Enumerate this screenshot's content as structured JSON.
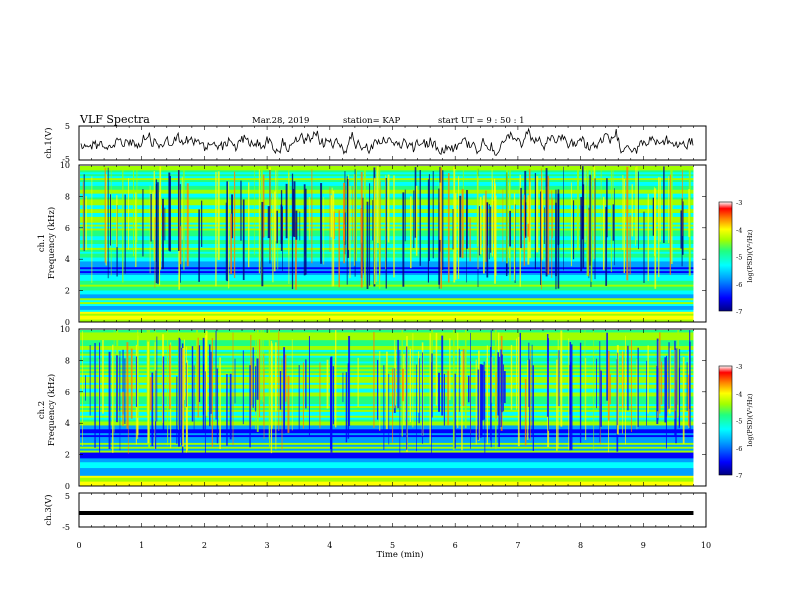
{
  "header": {
    "title": "VLF Spectra",
    "date": "Mar.28, 2019",
    "station": "station= KAP",
    "start": "start  UT =   9 : 50 : 1"
  },
  "chart_data": [
    {
      "type": "line",
      "name": "ch1-waveform",
      "ylabel": "ch.1(V)",
      "ylim": [
        -5,
        5
      ],
      "yticks": [
        "5",
        "-5"
      ],
      "xlim": [
        0,
        10
      ]
    },
    {
      "type": "heatmap",
      "name": "ch1-spectrogram",
      "ylabel": "ch.1\nFrequency  (kHz)",
      "ylabel_line1": "ch.1",
      "ylabel_line2": "Frequency  (kHz)",
      "ylim": [
        0,
        10
      ],
      "yticks": [
        "0",
        "2",
        "4",
        "6",
        "8",
        "10"
      ],
      "xlim": [
        0,
        10
      ],
      "colorbar": {
        "min": -7,
        "max": -3,
        "ticks": [
          "-3",
          "-4",
          "-5",
          "-6",
          "-7"
        ],
        "label": "log(PSD)(V²/Hz)"
      },
      "colormap": [
        "#000080",
        "#0000ff",
        "#00a0ff",
        "#00ffff",
        "#20ff80",
        "#a0ff00",
        "#ffff00",
        "#ff8000",
        "#ff0000",
        "#ffffff"
      ]
    },
    {
      "type": "heatmap",
      "name": "ch2-spectrogram",
      "ylabel": "ch.2\nFrequency  (kHz)",
      "ylabel_line1": "ch.2",
      "ylabel_line2": "Frequency  (kHz)",
      "ylim": [
        0,
        10
      ],
      "yticks": [
        "0",
        "2",
        "4",
        "6",
        "8",
        "10"
      ],
      "xlim": [
        0,
        10
      ],
      "colorbar": {
        "min": -7,
        "max": -3,
        "ticks": [
          "-3",
          "-4",
          "-5",
          "-6",
          "-7"
        ],
        "label": "log(PSD)(V²/Hz)"
      }
    },
    {
      "type": "line",
      "name": "ch3-waveform",
      "ylabel": "ch.3(V)",
      "ylim": [
        -5,
        5
      ],
      "yticks": [
        "5",
        "-5"
      ],
      "xlim": [
        0,
        10
      ],
      "x": [
        0,
        9.8
      ],
      "y": [
        -1,
        -1
      ]
    }
  ],
  "xaxis": {
    "label": "Time  (min)",
    "ticks": [
      "0",
      "1",
      "2",
      "3",
      "4",
      "5",
      "6",
      "7",
      "8",
      "9",
      "10"
    ]
  }
}
